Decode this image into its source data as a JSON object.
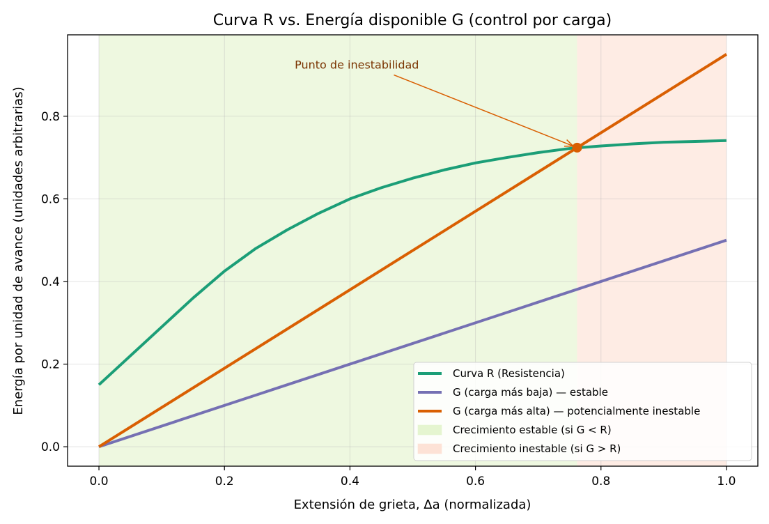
{
  "chart_data": {
    "type": "line",
    "title": "Curva R vs. Energía disponible G (control por carga)",
    "xlabel": "Extensión de grieta, Δa (normalizada)",
    "ylabel": "Energía por unidad de avance (unidades arbitrarias)",
    "xlim": [
      -0.05,
      1.05
    ],
    "ylim": [
      -0.047,
      0.997
    ],
    "xticks": [
      "0.0",
      "0.2",
      "0.4",
      "0.6",
      "0.8",
      "1.0"
    ],
    "yticks": [
      "0.0",
      "0.2",
      "0.4",
      "0.6",
      "0.8"
    ],
    "grid": true,
    "legend_position": "lower-right",
    "series": [
      {
        "name": "Curva R (Resistencia)",
        "color": "#1b9e77",
        "x": [
          0.0,
          0.05,
          0.1,
          0.15,
          0.2,
          0.25,
          0.3,
          0.35,
          0.4,
          0.45,
          0.5,
          0.55,
          0.6,
          0.65,
          0.7,
          0.75,
          0.8,
          0.85,
          0.9,
          0.95,
          1.0
        ],
        "y": [
          0.15,
          0.22,
          0.29,
          0.36,
          0.425,
          0.48,
          0.525,
          0.565,
          0.6,
          0.627,
          0.65,
          0.67,
          0.687,
          0.7,
          0.712,
          0.722,
          0.728,
          0.733,
          0.737,
          0.739,
          0.741
        ]
      },
      {
        "name": "G (carga más baja) — estable",
        "color": "#7570b3",
        "x": [
          0.0,
          1.0
        ],
        "y": [
          0.0,
          0.5
        ]
      },
      {
        "name": "G (carga más alta) — potencialmente inestable",
        "color": "#d95f02",
        "x": [
          0.0,
          1.0
        ],
        "y": [
          0.0,
          0.95
        ]
      }
    ],
    "regions": [
      {
        "name": "Crecimiento estable (si G < R)",
        "x_range": [
          0.0,
          0.762
        ],
        "color": "#e5f5d0"
      },
      {
        "name": "Crecimiento inestable (si G > R)",
        "x_range": [
          0.762,
          1.0
        ],
        "color": "#fde2d6"
      }
    ],
    "annotation": {
      "text": "Punto de inestabilidad",
      "point": [
        0.762,
        0.724
      ],
      "text_pos": [
        0.312,
        0.915
      ],
      "color": "#d95f02",
      "text_color": "#7a3300"
    }
  }
}
